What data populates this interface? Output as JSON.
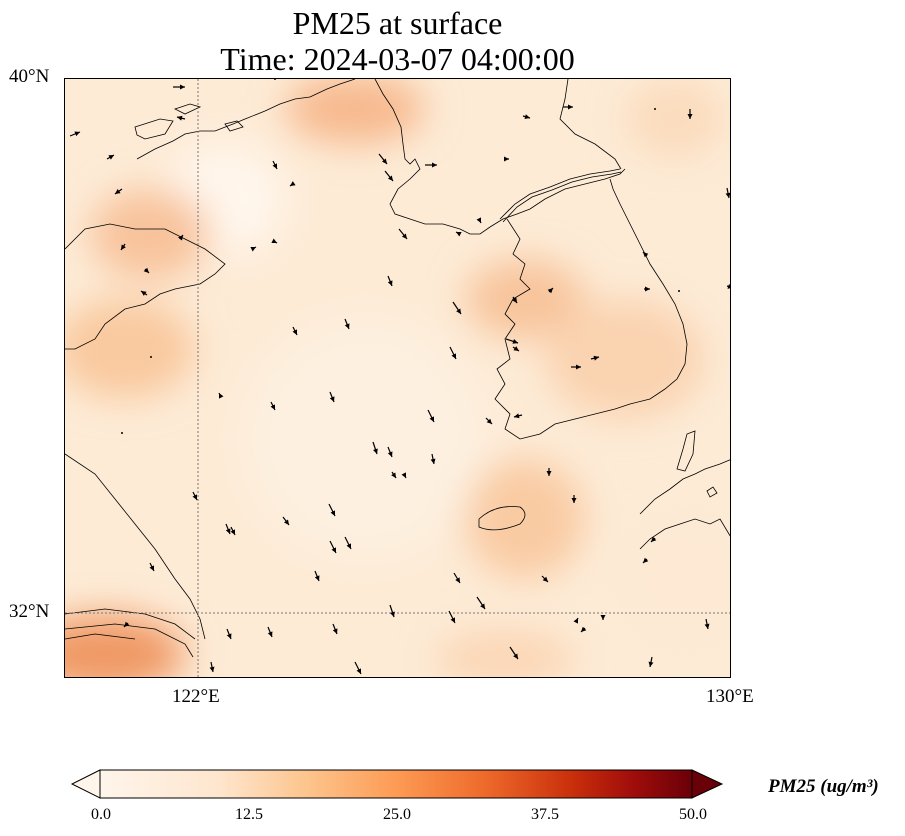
{
  "title": {
    "line1": "PM25 at surface",
    "line2": "Time: 2024-03-07 04:00:00"
  },
  "map": {
    "lat_ticks": [
      "40°N",
      "32°N"
    ],
    "lon_ticks": [
      "122°E",
      "130°E"
    ],
    "extent": {
      "lon_min": 120.0,
      "lon_max": 130.0,
      "lat_min": 31.0,
      "lat_max": 40.0
    },
    "gridlines": "dotted at 122°E and 32°N",
    "field_color_low": "#fff5eb",
    "field_color_mid": "#fdd0a2",
    "field_color_high": "#f0864a",
    "wind_vectors": "black arrows, mostly pointing south-southeast"
  },
  "colorbar": {
    "label": "PM25 (ug/m³)",
    "ticks": [
      "0.0",
      "12.5",
      "25.0",
      "37.5",
      "50.0"
    ],
    "range": [
      0.0,
      50.0
    ],
    "colormap": [
      "#fff5eb",
      "#fdd0a2",
      "#fdae6b",
      "#f16913",
      "#d94801",
      "#a50f15",
      "#67000d"
    ],
    "extend": "both"
  }
}
